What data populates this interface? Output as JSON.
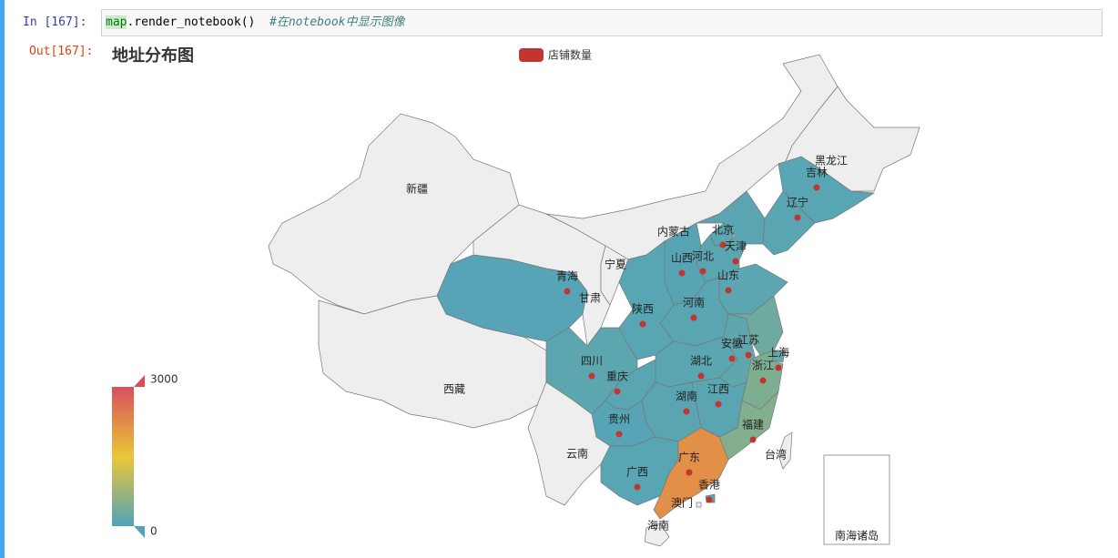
{
  "notebook": {
    "in_prompt": "In [167]:",
    "out_prompt": "Out[167]:",
    "code": {
      "object": "map",
      "call": ".render_notebook()",
      "comment": "#在notebook中显示图像"
    }
  },
  "chart_data": {
    "type": "map",
    "title": "地址分布图",
    "categories": [
      "新疆",
      "西藏",
      "青海",
      "甘肃",
      "内蒙古",
      "黑龙江",
      "吉林",
      "辽宁",
      "北京",
      "天津",
      "河北",
      "山西",
      "山东",
      "河南",
      "陕西",
      "宁夏",
      "四川",
      "重庆",
      "湖北",
      "安徽",
      "江苏",
      "上海",
      "浙江",
      "江西",
      "湖南",
      "福建",
      "贵州",
      "云南",
      "广西",
      "广东",
      "香港",
      "澳门",
      "海南",
      "台湾"
    ],
    "series": [
      {
        "name": "店铺数量",
        "color": "#c23531",
        "values": [
          null,
          null,
          60,
          null,
          null,
          null,
          80,
          90,
          120,
          80,
          100,
          70,
          110,
          90,
          80,
          null,
          120,
          90,
          110,
          150,
          300,
          200,
          450,
          100,
          100,
          500,
          60,
          null,
          80,
          2200,
          100,
          null,
          null,
          null
        ]
      }
    ],
    "visual_range": [
      0,
      3000
    ],
    "visual_colors": [
      "#50a3ba",
      "#eac736",
      "#d94e5d"
    ],
    "empty_color": "#eeeeee",
    "inset_label": "南海诸岛"
  }
}
